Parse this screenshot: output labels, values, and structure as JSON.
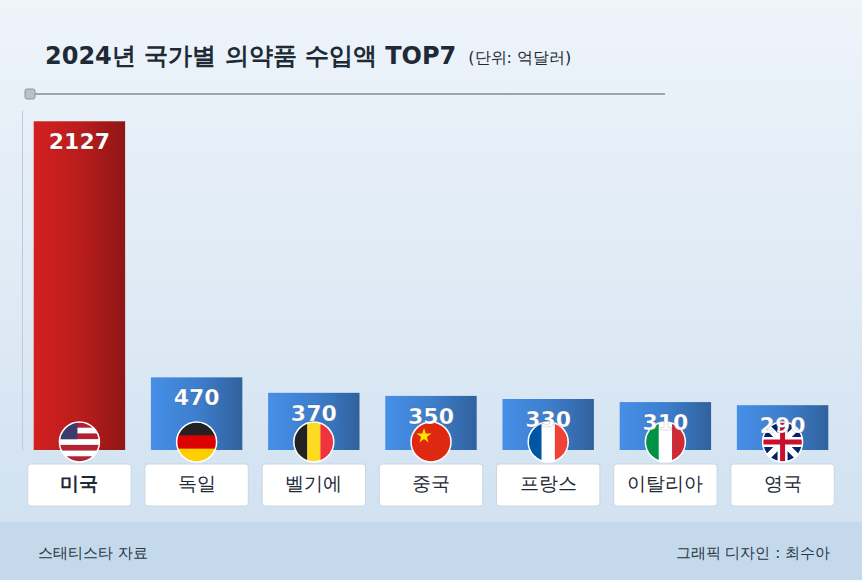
{
  "chart_data": {
    "type": "bar",
    "title": "2024년 국가별 의약품 수입액 TOP7",
    "subtitle": "(단위: 억달러)",
    "annotations": [
      "스태티스타 자료",
      "그래픽 디자인 : 최수아"
    ],
    "categories": [
      "미국",
      "독일",
      "벨기에",
      "중국",
      "프랑스",
      "이탈리아",
      "영국"
    ],
    "values": [
      2127,
      470,
      370,
      350,
      330,
      310,
      290
    ],
    "colors": [
      "#b71c1c",
      "#3d7cc9",
      "#3d7cc9",
      "#3d7cc9",
      "#3d7cc9",
      "#3d7cc9",
      "#3d7cc9"
    ],
    "ylim": [
      0,
      2200
    ],
    "data_labels": true,
    "tick_labels": "x",
    "grid": false
  }
}
